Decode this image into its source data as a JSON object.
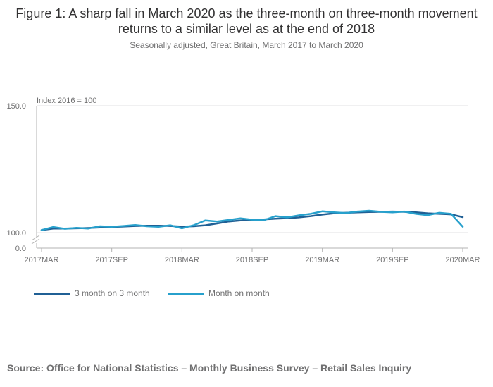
{
  "chart_data": {
    "type": "line",
    "title": "Figure 1: A sharp fall in March 2020 as the three-month on three-month movement returns to a similar level as at the end of 2018",
    "subtitle": "Seasonally adjusted, Great Britain, March 2017 to March 2020",
    "y_unit_label": "Index 2016 = 100",
    "y_ticks": [
      "150.0",
      "100.0",
      "0.0"
    ],
    "y_axis_break": true,
    "ylim": [
      100,
      150
    ],
    "grid": true,
    "x_tick_labels": [
      "2017MAR",
      "2017SEP",
      "2018MAR",
      "2018SEP",
      "2019MAR",
      "2019SEP",
      "2020MAR"
    ],
    "x_tick_indices": [
      0,
      6,
      12,
      18,
      24,
      30,
      36
    ],
    "x": [
      "2017MAR",
      "2017APR",
      "2017MAY",
      "2017JUN",
      "2017JUL",
      "2017AUG",
      "2017SEP",
      "2017OCT",
      "2017NOV",
      "2017DEC",
      "2018JAN",
      "2018FEB",
      "2018MAR",
      "2018APR",
      "2018MAY",
      "2018JUN",
      "2018JUL",
      "2018AUG",
      "2018SEP",
      "2018OCT",
      "2018NOV",
      "2018DEC",
      "2019JAN",
      "2019FEB",
      "2019MAR",
      "2019APR",
      "2019MAY",
      "2019JUN",
      "2019JUL",
      "2019AUG",
      "2019SEP",
      "2019OCT",
      "2019NOV",
      "2019DEC",
      "2020JAN",
      "2020FEB",
      "2020MAR"
    ],
    "legend_position": "bottom-left",
    "series": [
      {
        "name": "3 month on 3 month",
        "color": "#206095",
        "values": [
          101.0,
          101.6,
          101.6,
          101.7,
          101.8,
          102.0,
          102.2,
          102.4,
          102.6,
          102.7,
          102.7,
          102.6,
          102.4,
          102.5,
          102.9,
          103.6,
          104.4,
          104.8,
          105.0,
          105.2,
          105.5,
          105.7,
          106.0,
          106.5,
          107.1,
          107.6,
          107.8,
          108.0,
          108.1,
          108.2,
          108.3,
          108.2,
          108.0,
          107.6,
          107.4,
          107.2,
          106.1
        ]
      },
      {
        "name": "Month on month",
        "color": "#27a0cc",
        "values": [
          101.0,
          102.2,
          101.5,
          101.9,
          101.6,
          102.5,
          102.3,
          102.6,
          103.0,
          102.5,
          102.3,
          102.9,
          101.7,
          102.9,
          104.8,
          104.4,
          105.0,
          105.6,
          105.1,
          104.9,
          106.5,
          106.0,
          106.8,
          107.4,
          108.4,
          108.0,
          107.7,
          108.3,
          108.6,
          108.2,
          108.0,
          108.3,
          107.4,
          106.9,
          107.8,
          107.4,
          102.3
        ]
      }
    ]
  },
  "source": "Source: Office for National Statistics – Monthly Business Survey – Retail Sales Inquiry"
}
